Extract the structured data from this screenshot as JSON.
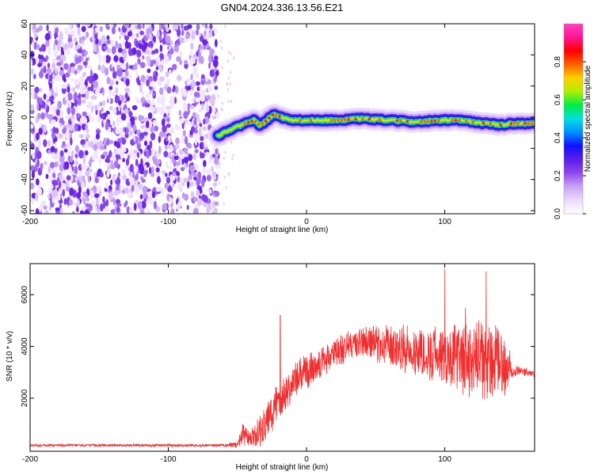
{
  "title": "GN04.2024.336.13.56.E21",
  "colors": {
    "snr_line": "#f03030",
    "noise_purple": "#7d2fe6",
    "colormap": [
      "#ffffff",
      "#ead9fb",
      "#c9a5f4",
      "#8f47ee",
      "#5a1ee8",
      "#1010ff",
      "#0090ff",
      "#00e0e0",
      "#00ee40",
      "#b0ee00",
      "#ffd000",
      "#ff6000",
      "#ff0000",
      "#ff1493",
      "#ff40c0"
    ]
  },
  "chart_data": [
    {
      "type": "heatmap",
      "title": "GN04.2024.336.13.56.E21",
      "xlabel": "Height of straight line (km)",
      "ylabel": "Frequency (Hz)",
      "xlim": [
        -200,
        165
      ],
      "ylim": [
        -62,
        60
      ],
      "x_ticks": [
        -200,
        -100,
        0,
        100
      ],
      "y_ticks": [
        -60,
        -40,
        -20,
        0,
        20,
        40,
        60
      ],
      "colorbar": {
        "label": "Normalized spectral amplitude",
        "range": [
          0.0,
          1.0
        ],
        "ticks": [
          0.0,
          0.2,
          0.4,
          0.6,
          0.8
        ]
      },
      "noise_region_x": [
        -200,
        -64
      ],
      "ridge": {
        "x": [
          -64,
          -58,
          -50,
          -44,
          -38,
          -34,
          -30,
          -24,
          -18,
          -10,
          0,
          20,
          40,
          60,
          80,
          100,
          110,
          120,
          130,
          140,
          150,
          160,
          165
        ],
        "y": [
          -12,
          -9,
          -6,
          -4,
          -2,
          -5,
          -3,
          2,
          0,
          -2,
          -2,
          -2,
          -1,
          -2,
          -3,
          -2,
          -2,
          -3,
          -4,
          -5,
          -4,
          -4,
          -4
        ],
        "peak_amplitude": 1.0
      }
    },
    {
      "type": "line",
      "xlabel": "Height of straight line (km)",
      "ylabel": "SNR (10 * v/v)",
      "xlim": [
        -200,
        165
      ],
      "ylim": [
        -50,
        7200
      ],
      "x_ticks": [
        -200,
        -100,
        0,
        100
      ],
      "y_ticks": [
        2000,
        4000,
        6000
      ],
      "series": [
        {
          "x": [
            -200,
            -150,
            -100,
            -60,
            -50,
            -46,
            -42,
            -38,
            -34,
            -30,
            -26,
            -22,
            -20,
            -18,
            -14,
            -10,
            -5,
            0,
            5,
            10,
            20,
            25,
            30,
            40,
            50,
            60,
            70,
            80,
            90,
            100,
            110,
            120,
            130,
            140,
            145,
            150,
            160,
            165
          ],
          "center": [
            180,
            180,
            180,
            180,
            200,
            600,
            400,
            500,
            700,
            900,
            1300,
            1800,
            2000,
            2100,
            2300,
            2600,
            2800,
            3000,
            3200,
            3400,
            3700,
            3900,
            4000,
            4200,
            4100,
            4000,
            3900,
            3800,
            3700,
            3700,
            3500,
            3400,
            3400,
            3300,
            3200,
            3100,
            3000,
            2900
          ],
          "amplitude": [
            60,
            60,
            60,
            60,
            150,
            500,
            400,
            500,
            700,
            800,
            900,
            1000,
            900,
            900,
            800,
            800,
            800,
            800,
            800,
            700,
            700,
            700,
            700,
            700,
            800,
            900,
            1000,
            1100,
            1200,
            1300,
            1500,
            1700,
            1800,
            1600,
            1200,
            300,
            150,
            150
          ],
          "spikes": [
            {
              "x": -19,
              "y": 5200
            },
            {
              "x": 100,
              "y": 7000
            },
            {
              "x": 130,
              "y": 6900
            },
            {
              "x": 115,
              "y": 5500
            }
          ]
        }
      ]
    }
  ]
}
